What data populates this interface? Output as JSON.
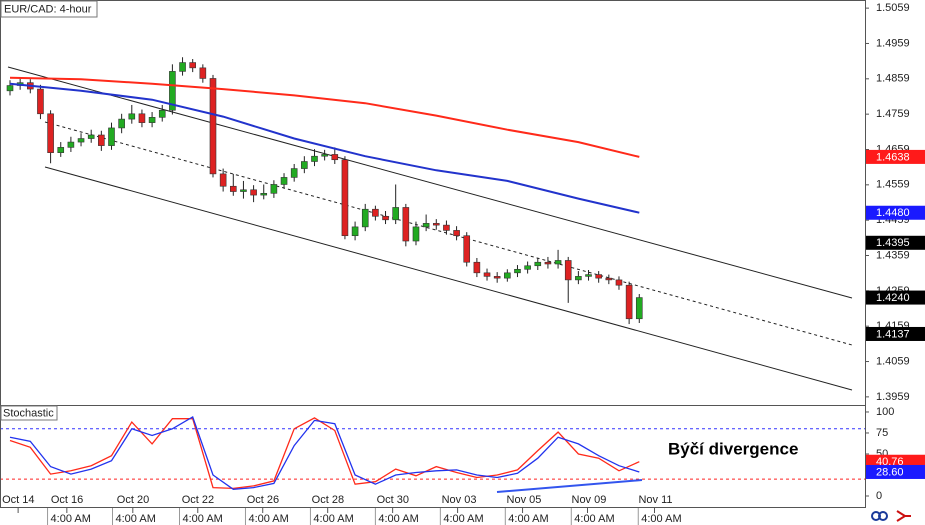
{
  "chart_data": [
    {
      "type": "candlestick",
      "title": "EUR/CAD: 4-hour",
      "xlim": [
        -0.985,
        84.24
      ],
      "ylim": [
        1.3936,
        1.5082
      ],
      "yticks": [
        1.5059,
        1.4959,
        1.4859,
        1.4759,
        1.4659,
        1.4559,
        1.4459,
        1.4359,
        1.4259,
        1.4159,
        1.4059,
        1.3959
      ],
      "up_color": "#22aa22",
      "down_color": "#dd2222",
      "open": [
        1.4825,
        1.484,
        1.4848,
        1.483,
        1.476,
        1.465,
        1.4665,
        1.468,
        1.469,
        1.47,
        1.467,
        1.472,
        1.4745,
        1.476,
        1.4735,
        1.475,
        1.477,
        1.488,
        1.4905,
        1.489,
        1.486,
        1.459,
        1.4555,
        1.454,
        1.4545,
        1.453,
        1.4535,
        1.456,
        1.458,
        1.4605,
        1.4625,
        1.464,
        1.4645,
        1.463,
        1.4415,
        1.444,
        1.449,
        1.447,
        1.446,
        1.4495,
        1.44,
        1.444,
        1.445,
        1.4445,
        1.443,
        1.4415,
        1.434,
        1.431,
        1.43,
        1.4295,
        1.431,
        1.432,
        1.433,
        1.434,
        1.4335,
        1.4345,
        1.429,
        1.43,
        1.4305,
        1.4295,
        1.429,
        1.4275,
        1.418
      ],
      "high": [
        1.4855,
        1.4862,
        1.4858,
        1.4842,
        1.477,
        1.468,
        1.4695,
        1.4705,
        1.4715,
        1.4712,
        1.4735,
        1.476,
        1.4785,
        1.4772,
        1.4765,
        1.4785,
        1.49,
        1.492,
        1.4915,
        1.49,
        1.487,
        1.4605,
        1.459,
        1.457,
        1.4558,
        1.456,
        1.4572,
        1.4592,
        1.4618,
        1.464,
        1.466,
        1.4658,
        1.4665,
        1.464,
        1.4455,
        1.4505,
        1.45,
        1.4485,
        1.456,
        1.4505,
        1.4455,
        1.4475,
        1.4462,
        1.4458,
        1.4442,
        1.4425,
        1.4352,
        1.4322,
        1.4312,
        1.432,
        1.4332,
        1.4342,
        1.4352,
        1.4355,
        1.4375,
        1.4355,
        1.4315,
        1.4318,
        1.4315,
        1.4305,
        1.43,
        1.4285,
        1.425
      ],
      "low": [
        1.4812,
        1.4828,
        1.4818,
        1.4745,
        1.462,
        1.4638,
        1.4652,
        1.4668,
        1.4678,
        1.4655,
        1.4658,
        1.4705,
        1.4732,
        1.4722,
        1.4722,
        1.4738,
        1.4758,
        1.4868,
        1.4878,
        1.4848,
        1.458,
        1.454,
        1.4528,
        1.452,
        1.451,
        1.4518,
        1.4522,
        1.4548,
        1.4568,
        1.4592,
        1.4612,
        1.4628,
        1.4618,
        1.4405,
        1.4402,
        1.4428,
        1.4458,
        1.4448,
        1.4448,
        1.4385,
        1.4388,
        1.4428,
        1.4432,
        1.4418,
        1.4402,
        1.4328,
        1.4298,
        1.4288,
        1.4282,
        1.4285,
        1.4298,
        1.4308,
        1.4318,
        1.4322,
        1.4322,
        1.4225,
        1.4278,
        1.4288,
        1.4282,
        1.4278,
        1.4262,
        1.4165,
        1.4168
      ],
      "close": [
        1.484,
        1.4848,
        1.483,
        1.476,
        1.465,
        1.4665,
        1.468,
        1.469,
        1.47,
        1.467,
        1.472,
        1.4745,
        1.476,
        1.4735,
        1.475,
        1.477,
        1.488,
        1.4905,
        1.489,
        1.486,
        1.459,
        1.4555,
        1.454,
        1.4545,
        1.453,
        1.4535,
        1.456,
        1.458,
        1.4605,
        1.4625,
        1.464,
        1.4645,
        1.463,
        1.4415,
        1.444,
        1.449,
        1.447,
        1.446,
        1.4495,
        1.44,
        1.444,
        1.445,
        1.4445,
        1.443,
        1.4415,
        1.434,
        1.431,
        1.43,
        1.4295,
        1.431,
        1.432,
        1.433,
        1.434,
        1.4335,
        1.4345,
        1.429,
        1.43,
        1.4305,
        1.4295,
        1.429,
        1.4275,
        1.418,
        1.424
      ],
      "series": [
        {
          "color": "#ff2a1a",
          "x": [
            0,
            7,
            14,
            21,
            28,
            35,
            42,
            49,
            56,
            62
          ],
          "values": [
            1.4862,
            1.4858,
            1.4845,
            1.483,
            1.4812,
            1.479,
            1.4755,
            1.4715,
            1.468,
            1.4638
          ]
        },
        {
          "color": "#2233cc",
          "x": [
            0,
            7,
            14,
            21,
            28,
            35,
            42,
            49,
            56,
            62
          ],
          "values": [
            1.4845,
            1.4825,
            1.48,
            1.4752,
            1.469,
            1.464,
            1.46,
            1.457,
            1.452,
            1.448
          ]
        }
      ],
      "tags": [
        {
          "value": 1.4638,
          "color": "#ff1a1a"
        },
        {
          "value": 1.448,
          "label": "1.4480",
          "color": "#1a1aff"
        },
        {
          "value": 1.4395,
          "color": "#000000"
        },
        {
          "value": 1.424,
          "label": "1.4240",
          "color": "#000000"
        },
        {
          "value": 1.4137,
          "color": "#000000"
        }
      ]
    },
    {
      "type": "line",
      "title": "Stochastic",
      "annotation": "Býčí divergence",
      "xlim": [
        -0.985,
        84.24
      ],
      "ylim": [
        -14.3,
        108.3
      ],
      "yticks": [
        100,
        75,
        50,
        25,
        0
      ],
      "levels": [
        {
          "value": 80,
          "color": "#3333ff"
        },
        {
          "value": 20,
          "color": "#ff2222"
        }
      ],
      "series": [
        {
          "color": "#ff2a1a",
          "x": [
            0,
            2,
            4,
            6,
            8,
            10,
            12,
            14,
            16,
            18,
            20,
            22,
            24,
            26,
            28,
            30,
            32,
            34,
            36,
            38,
            40,
            42,
            44,
            46,
            48,
            50,
            52,
            54,
            56,
            58,
            60,
            62
          ],
          "values": [
            66,
            58,
            26,
            30,
            36,
            48,
            88,
            62,
            92,
            92,
            10,
            9,
            12,
            18,
            80,
            93,
            78,
            14,
            17,
            32,
            24,
            35,
            28,
            22,
            25,
            31,
            54,
            76,
            50,
            45,
            30,
            40.76
          ]
        },
        {
          "color": "#2233ee",
          "x": [
            0,
            2,
            4,
            6,
            8,
            10,
            12,
            14,
            16,
            18,
            20,
            22,
            24,
            26,
            28,
            30,
            32,
            34,
            36,
            38,
            40,
            42,
            44,
            46,
            48,
            50,
            52,
            54,
            56,
            58,
            60,
            62
          ],
          "values": [
            70,
            65,
            35,
            26,
            32,
            42,
            80,
            72,
            80,
            94,
            25,
            8,
            10,
            15,
            60,
            90,
            86,
            25,
            14,
            25,
            28,
            30,
            31,
            25,
            22,
            27,
            45,
            70,
            62,
            48,
            36,
            28.6
          ]
        }
      ],
      "tags": [
        {
          "value": 40.76,
          "color": "#ff1a1a"
        },
        {
          "value": 28.6,
          "label": "28.60",
          "color": "#1a1aff"
        }
      ],
      "xticks": [
        {
          "value": 0.8,
          "label": "Oct 14"
        },
        {
          "value": 5.6,
          "label": "Oct 16"
        },
        {
          "value": 12.1,
          "label": "Oct 20"
        },
        {
          "value": 18.5,
          "label": "Oct 22"
        },
        {
          "value": 24.9,
          "label": "Oct 26"
        },
        {
          "value": 31.3,
          "label": "Oct 28"
        },
        {
          "value": 37.7,
          "label": "Oct 30"
        },
        {
          "value": 44.1,
          "label": "Nov 03"
        },
        {
          "value": 50.5,
          "label": "Nov 05"
        },
        {
          "value": 56.9,
          "label": "Nov 09"
        },
        {
          "value": 63.5,
          "label": "Nov 11"
        }
      ],
      "xticks_minor": [
        {
          "value": 3.7,
          "label": "4:00 AM"
        },
        {
          "value": 10.1,
          "label": "4:00 AM"
        },
        {
          "value": 16.7,
          "label": "4:00 AM"
        },
        {
          "value": 23.2,
          "label": "4:00 AM"
        },
        {
          "value": 29.6,
          "label": "4:00 AM"
        },
        {
          "value": 36.0,
          "label": "4:00 AM"
        },
        {
          "value": 42.4,
          "label": "4:00 AM"
        },
        {
          "value": 48.8,
          "label": "4:00 AM"
        },
        {
          "value": 55.3,
          "label": "4:00 AM"
        },
        {
          "value": 61.9,
          "label": "4:00 AM"
        }
      ]
    }
  ]
}
